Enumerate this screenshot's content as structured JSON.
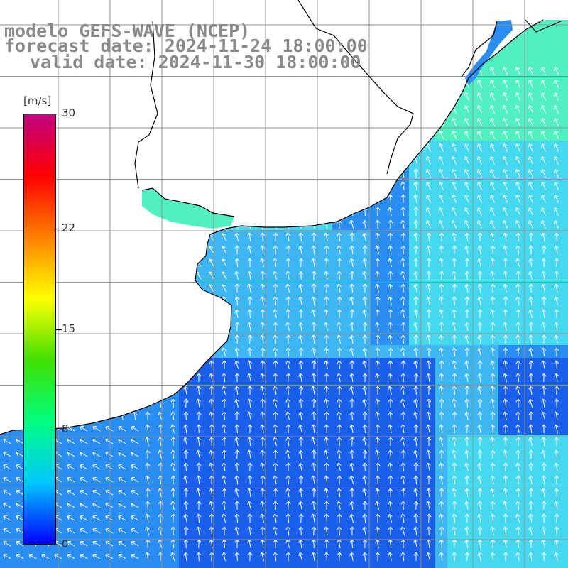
{
  "header": {
    "model_line": "modelo GEFS-WAVE (NCEP)",
    "forecast_line": "forecast date: 2024-11-24 18:00:00",
    "valid_line": "valid date: 2024-11-30 18:00:00"
  },
  "colorbar": {
    "unit": "[m/s]",
    "ticks": [
      "30",
      "22",
      "15",
      "8",
      "0"
    ],
    "tick_values": [
      30,
      22,
      15,
      8,
      0
    ],
    "min": 0,
    "max": 30,
    "colors": [
      "#0000ff",
      "#00c8ff",
      "#00ff80",
      "#40e000",
      "#ffff00",
      "#ff8000",
      "#ff0000",
      "#c00080"
    ]
  },
  "map": {
    "land_color": "#ffffff",
    "grid_color": "#909090",
    "coast_color": "#000000",
    "arrow_color": "#ffffff",
    "field_palette": {
      "deep_blue": "#1a60ea",
      "blue": "#2a8df2",
      "azure": "#3fb6f4",
      "cyan": "#46d8ee",
      "aqua_green": "#52efc0"
    }
  }
}
